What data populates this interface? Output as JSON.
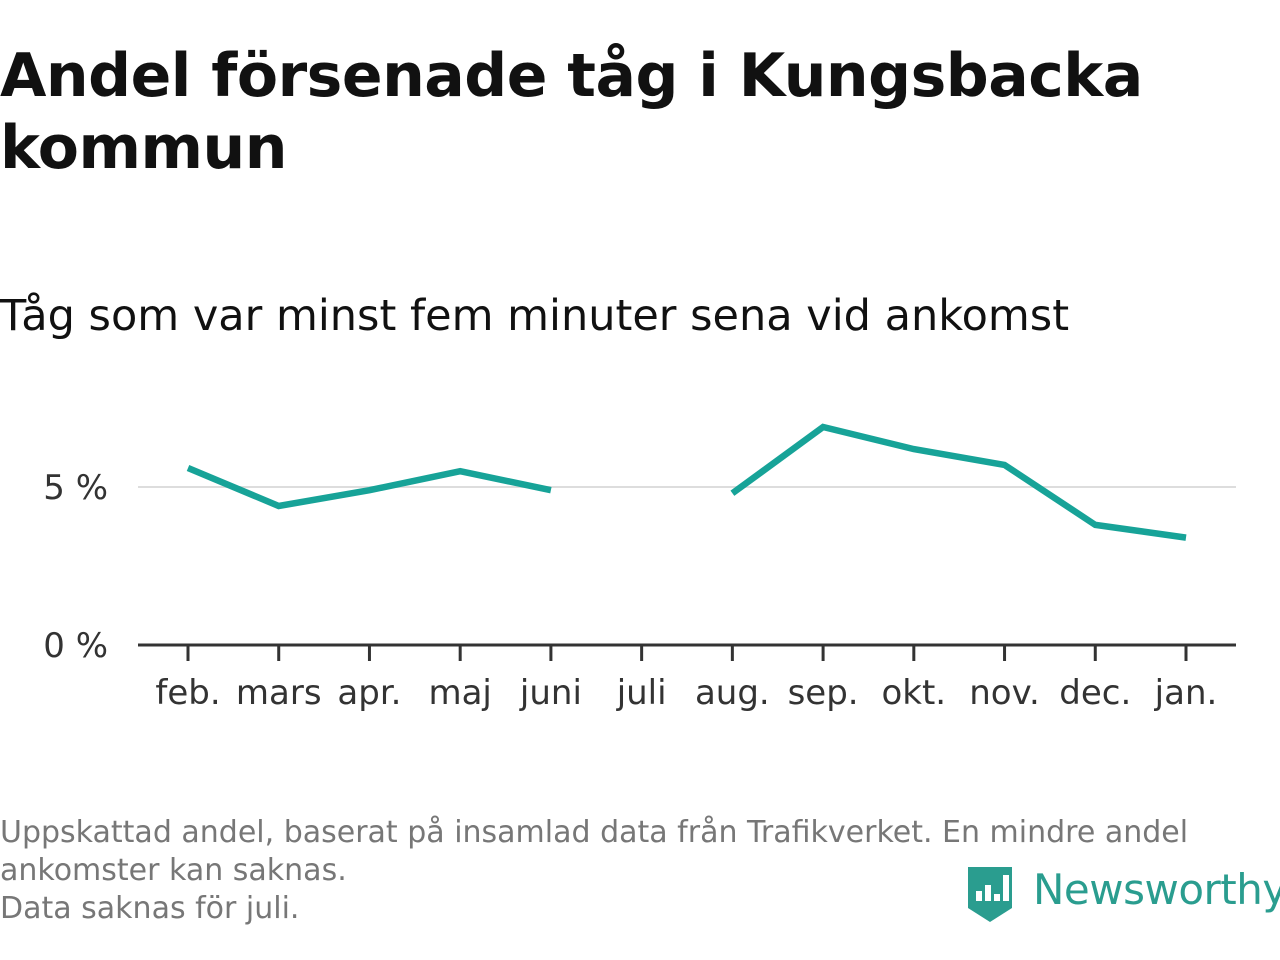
{
  "title": "Andel försenade tåg i Kungsbacka kommun",
  "subtitle": "Tåg som var minst fem minuter sena vid ankomst",
  "footnote": {
    "line1": "Uppskattad andel, baserat på insamlad data från Trafikverket. En mindre andel ankomster kan saknas.",
    "line2": "Data saknas för juli."
  },
  "brand": {
    "name": "Newsworthy",
    "icon": "newsworthy-logo-icon",
    "color": "#2a9d8f"
  },
  "chart_data": {
    "type": "line",
    "title": "Andel försenade tåg i Kungsbacka kommun",
    "subtitle": "Tåg som var minst fem minuter sena vid ankomst",
    "categories": [
      "feb.",
      "mars",
      "apr.",
      "maj",
      "juni",
      "juli",
      "aug.",
      "sep.",
      "okt.",
      "nov.",
      "dec.",
      "jan."
    ],
    "series": [
      {
        "values": [
          5.6,
          4.4,
          4.9,
          5.5,
          4.9,
          null,
          4.8,
          6.9,
          6.2,
          5.7,
          3.8,
          3.4
        ],
        "color": "#17a398"
      }
    ],
    "yticks": [
      0,
      5
    ],
    "ytick_labels": [
      "0 %",
      "5 %"
    ],
    "ylim": [
      0,
      8
    ],
    "xlabel": "",
    "ylabel": "",
    "grid": true
  }
}
